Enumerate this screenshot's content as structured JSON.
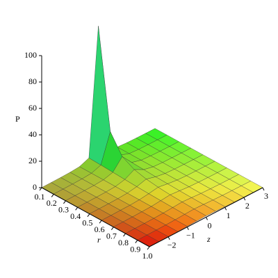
{
  "chart_data": {
    "type": "surface",
    "x_label": "r",
    "y_label": "z",
    "z_label": "P",
    "r": [
      0.1,
      0.2,
      0.3,
      0.4,
      0.5,
      0.6,
      0.7,
      0.8,
      0.9,
      1.0
    ],
    "z": [
      -3,
      -2.5,
      -2,
      -1.5,
      -1,
      -0.5,
      0,
      0.5,
      1,
      1.5,
      2,
      2.5,
      3
    ],
    "values": [
      [
        0.11,
        0.16,
        0.25,
        0.44,
        0.99,
        3.85,
        100,
        3.85,
        0.99,
        0.44,
        0.25,
        0.16,
        0.11
      ],
      [
        0.11,
        0.16,
        0.25,
        0.44,
        0.96,
        3.45,
        25,
        3.45,
        0.96,
        0.44,
        0.25,
        0.16,
        0.11
      ],
      [
        0.11,
        0.16,
        0.24,
        0.43,
        0.92,
        2.94,
        11.11,
        2.94,
        0.92,
        0.43,
        0.24,
        0.16,
        0.11
      ],
      [
        0.11,
        0.16,
        0.24,
        0.41,
        0.86,
        2.44,
        6.25,
        2.44,
        0.86,
        0.41,
        0.24,
        0.16,
        0.11
      ],
      [
        0.11,
        0.15,
        0.24,
        0.4,
        0.8,
        2,
        4,
        2,
        0.8,
        0.4,
        0.24,
        0.15,
        0.11
      ],
      [
        0.11,
        0.15,
        0.23,
        0.38,
        0.74,
        1.64,
        2.78,
        1.64,
        0.74,
        0.38,
        0.23,
        0.15,
        0.11
      ],
      [
        0.11,
        0.15,
        0.22,
        0.36,
        0.67,
        1.35,
        2.04,
        1.35,
        0.67,
        0.36,
        0.22,
        0.15,
        0.11
      ],
      [
        0.1,
        0.15,
        0.22,
        0.35,
        0.61,
        1.12,
        1.56,
        1.12,
        0.61,
        0.35,
        0.22,
        0.15,
        0.1
      ],
      [
        0.1,
        0.14,
        0.21,
        0.33,
        0.55,
        0.94,
        1.23,
        0.94,
        0.55,
        0.33,
        0.21,
        0.14,
        0.1
      ],
      [
        0.1,
        0.14,
        0.2,
        0.31,
        0.5,
        0.8,
        1,
        0.8,
        0.5,
        0.31,
        0.2,
        0.14,
        0.1
      ]
    ],
    "xlim": [
      0.1,
      1.0
    ],
    "ylim": [
      -3,
      3
    ],
    "zlim": [
      0,
      100
    ],
    "xticks": [
      0.1,
      0.2,
      0.3,
      0.4,
      0.5,
      0.6,
      0.7,
      0.8,
      0.9,
      {
        "value": 1,
        "label": "1.0"
      }
    ],
    "yticks": [
      {
        "value": -2,
        "label": "−2"
      },
      {
        "value": -1,
        "label": "−1"
      },
      0,
      1,
      2,
      3
    ],
    "zticks": [
      0,
      20,
      40,
      60,
      80,
      100
    ]
  }
}
